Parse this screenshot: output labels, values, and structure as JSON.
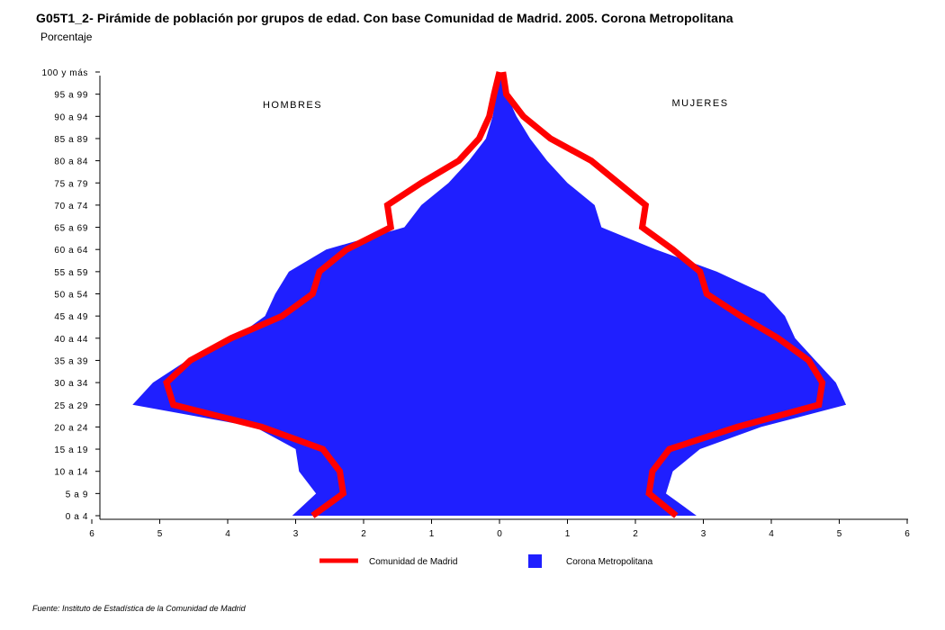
{
  "title": "G05T1_2- Pirámide de población por grupos de edad.  Con base Comunidad de Madrid. 2005. Corona Metropolitana",
  "subtitle": "Porcentaje",
  "source": "Fuente: Instituto de Estadística de la Comunidad de Madrid",
  "colors": {
    "area": "#1f1fff",
    "line": "#ff0000"
  },
  "chart_data": {
    "type": "area",
    "orientation": "population-pyramid",
    "categories": [
      "0 a 4",
      "5 a 9",
      "10 a 14",
      "15 a 19",
      "20 a 24",
      "25 a 29",
      "30 a 34",
      "35 a 39",
      "40 a 44",
      "45 a 49",
      "50 a 54",
      "55 a 59",
      "60 a 64",
      "65 a 69",
      "70 a 74",
      "75 a 79",
      "80 a 84",
      "85 a 89",
      "90 a 94",
      "95 a 99",
      "100 y más"
    ],
    "x_ticks": [
      "6",
      "5",
      "4",
      "3",
      "2",
      "1",
      "0",
      "1",
      "2",
      "3",
      "4",
      "5",
      "6"
    ],
    "xlim": [
      -6,
      6
    ],
    "left_label": "HOMBRES",
    "right_label": "MUJERES",
    "series": [
      {
        "name": "Corona Metropolitana",
        "kind": "area",
        "hombres": [
          3.05,
          2.7,
          2.95,
          3.0,
          3.6,
          5.4,
          5.1,
          4.6,
          3.9,
          3.45,
          3.3,
          3.1,
          2.55,
          1.4,
          1.15,
          0.75,
          0.45,
          0.2,
          0.1,
          0.05,
          0.0
        ],
        "mujeres": [
          2.9,
          2.45,
          2.55,
          2.95,
          3.85,
          5.1,
          4.95,
          4.65,
          4.35,
          4.2,
          3.9,
          3.2,
          2.3,
          1.5,
          1.4,
          1.0,
          0.7,
          0.45,
          0.25,
          0.1,
          0.0
        ]
      },
      {
        "name": "Comunidad de Madrid",
        "kind": "line",
        "hombres": [
          2.75,
          2.3,
          2.35,
          2.6,
          3.5,
          4.8,
          4.9,
          4.55,
          3.95,
          3.2,
          2.75,
          2.65,
          2.25,
          1.6,
          1.65,
          1.15,
          0.6,
          0.3,
          0.15,
          0.08,
          0.0
        ],
        "mujeres": [
          2.6,
          2.2,
          2.25,
          2.5,
          3.5,
          4.7,
          4.75,
          4.55,
          4.1,
          3.55,
          3.05,
          2.95,
          2.55,
          2.1,
          2.15,
          1.75,
          1.35,
          0.75,
          0.35,
          0.1,
          0.05
        ]
      }
    ],
    "legend_position": "bottom"
  }
}
